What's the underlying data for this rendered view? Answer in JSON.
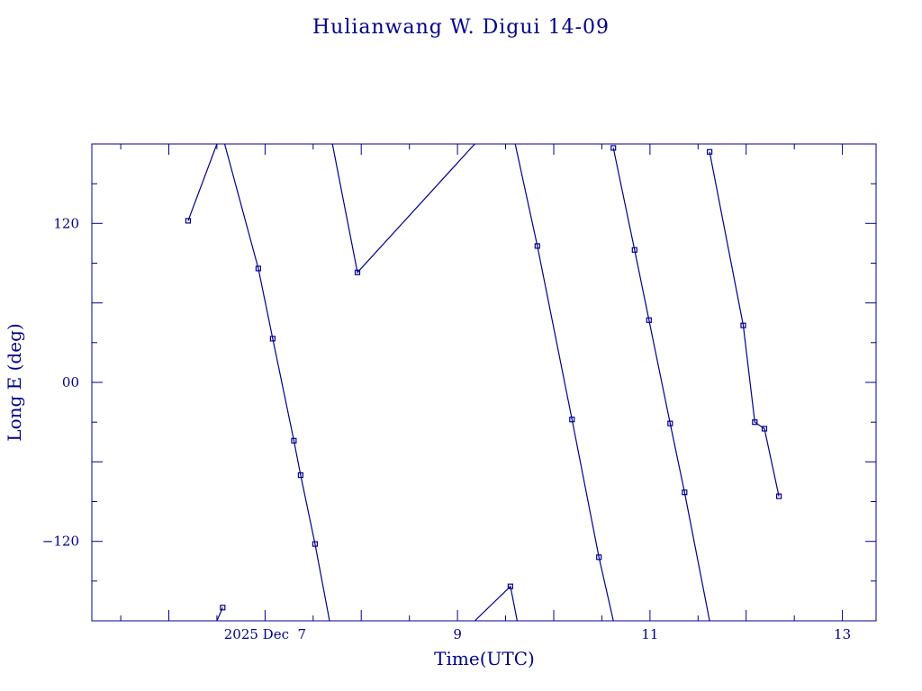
{
  "chart_data": {
    "type": "line",
    "title": "Hulianwang W. Digui 14-09",
    "xlabel": "Time(UTC)",
    "ylabel": "Long E (deg)",
    "x_unit": "days (December 2025, UTC)",
    "xlim": [
      5.2,
      13.35
    ],
    "ylim": [
      -180,
      180
    ],
    "x_tick_labels": [
      {
        "x": 7,
        "label": "2025 Dec  7"
      },
      {
        "x": 9,
        "label": "9"
      },
      {
        "x": 11,
        "label": "11"
      },
      {
        "x": 13,
        "label": "13"
      }
    ],
    "y_tick_labels": [
      {
        "y": 120,
        "label": "120"
      },
      {
        "y": 0,
        "label": "00"
      },
      {
        "y": -120,
        "label": "−120"
      }
    ],
    "grid": false,
    "color": "#00008b",
    "series": [
      {
        "points": [
          [
            6.2,
            122
          ],
          [
            6.5,
            180
          ]
        ],
        "markers": [
          [
            6.2,
            122
          ]
        ]
      },
      {
        "points": [
          [
            6.5,
            -180
          ],
          [
            6.56,
            -170
          ]
        ],
        "markers": [
          [
            6.56,
            -170
          ]
        ]
      },
      {
        "points": [
          [
            6.58,
            180
          ],
          [
            6.93,
            86
          ],
          [
            7.08,
            33
          ],
          [
            7.3,
            -44
          ],
          [
            7.37,
            -70
          ],
          [
            7.52,
            -122
          ],
          [
            7.67,
            -180
          ]
        ],
        "markers": [
          [
            6.93,
            86
          ],
          [
            7.08,
            33
          ],
          [
            7.3,
            -44
          ],
          [
            7.37,
            -70
          ],
          [
            7.52,
            -122
          ]
        ]
      },
      {
        "points": [
          [
            7.7,
            180
          ],
          [
            7.96,
            83
          ],
          [
            9.18,
            180
          ]
        ],
        "markers": [
          [
            7.96,
            83
          ]
        ]
      },
      {
        "points": [
          [
            9.18,
            -180
          ],
          [
            9.55,
            -154
          ],
          [
            9.62,
            -180
          ]
        ],
        "markers": [
          [
            9.55,
            -154
          ]
        ]
      },
      {
        "points": [
          [
            9.6,
            180
          ],
          [
            9.83,
            103
          ],
          [
            10.19,
            -28
          ],
          [
            10.47,
            -132
          ],
          [
            10.62,
            -180
          ]
        ],
        "markers": [
          [
            9.83,
            103
          ],
          [
            10.19,
            -28
          ],
          [
            10.47,
            -132
          ]
        ]
      },
      {
        "points": [
          [
            10.62,
            177
          ],
          [
            10.84,
            100
          ],
          [
            10.99,
            47
          ],
          [
            11.21,
            -31
          ],
          [
            11.36,
            -83
          ],
          [
            11.62,
            -180
          ]
        ],
        "markers": [
          [
            10.62,
            177
          ],
          [
            10.84,
            100
          ],
          [
            10.99,
            47
          ],
          [
            11.21,
            -31
          ],
          [
            11.36,
            -83
          ]
        ]
      },
      {
        "points": [
          [
            11.62,
            174
          ],
          [
            11.97,
            43
          ],
          [
            12.09,
            -30
          ],
          [
            12.19,
            -35
          ],
          [
            12.34,
            -86
          ]
        ],
        "markers": [
          [
            11.62,
            174
          ],
          [
            11.97,
            43
          ],
          [
            12.09,
            -30
          ],
          [
            12.19,
            -35
          ],
          [
            12.34,
            -86
          ]
        ]
      }
    ]
  }
}
